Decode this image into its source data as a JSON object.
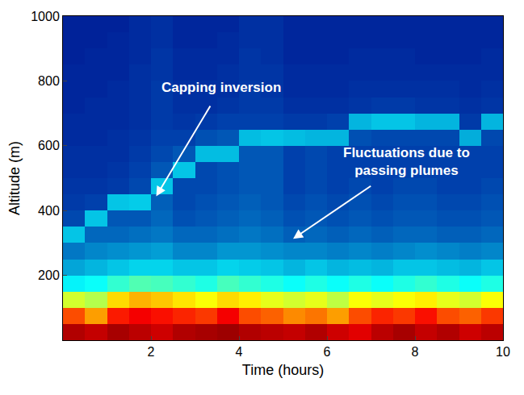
{
  "chart_data": {
    "type": "heatmap",
    "x_label": "Time (hours)",
    "y_label": "Altitude (m)",
    "x": [
      0.25,
      0.75,
      1.25,
      1.75,
      2.25,
      2.75,
      3.25,
      3.75,
      4.25,
      4.75,
      5.25,
      5.75,
      6.25,
      6.75,
      7.25,
      7.75,
      8.25,
      8.75,
      9.25,
      9.75
    ],
    "y": [
      25,
      75,
      125,
      175,
      225,
      275,
      325,
      375,
      425,
      475,
      525,
      575,
      625,
      675,
      725,
      775,
      825,
      875,
      925,
      975
    ],
    "cells": [
      [
        0.95,
        0.93,
        0.96,
        0.94,
        0.92,
        0.95,
        0.96,
        0.97,
        0.95,
        0.94,
        0.93,
        0.95,
        0.92,
        0.9,
        0.94,
        0.96,
        0.93,
        0.95,
        0.92,
        0.94
      ],
      [
        0.8,
        0.72,
        0.85,
        0.88,
        0.86,
        0.84,
        0.82,
        0.88,
        0.8,
        0.78,
        0.74,
        0.76,
        0.72,
        0.8,
        0.84,
        0.82,
        0.86,
        0.8,
        0.78,
        0.82
      ],
      [
        0.58,
        0.55,
        0.66,
        0.7,
        0.68,
        0.65,
        0.62,
        0.66,
        0.64,
        0.6,
        0.58,
        0.6,
        0.56,
        0.62,
        0.6,
        0.62,
        0.64,
        0.6,
        0.58,
        0.62
      ],
      [
        0.36,
        0.38,
        0.42,
        0.45,
        0.44,
        0.42,
        0.4,
        0.44,
        0.42,
        0.4,
        0.38,
        0.4,
        0.38,
        0.4,
        0.38,
        0.4,
        0.42,
        0.4,
        0.38,
        0.4
      ],
      [
        0.26,
        0.28,
        0.3,
        0.32,
        0.32,
        0.3,
        0.3,
        0.32,
        0.31,
        0.3,
        0.28,
        0.3,
        0.28,
        0.29,
        0.28,
        0.3,
        0.3,
        0.29,
        0.28,
        0.3
      ],
      [
        0.2,
        0.22,
        0.23,
        0.24,
        0.25,
        0.22,
        0.22,
        0.24,
        0.24,
        0.23,
        0.22,
        0.22,
        0.21,
        0.22,
        0.21,
        0.22,
        0.23,
        0.22,
        0.21,
        0.22
      ],
      [
        0.3,
        0.18,
        0.18,
        0.19,
        0.2,
        0.18,
        0.18,
        0.19,
        0.2,
        0.19,
        0.17,
        0.18,
        0.17,
        0.18,
        0.17,
        0.18,
        0.18,
        0.17,
        0.17,
        0.18
      ],
      [
        0.14,
        0.3,
        0.16,
        0.16,
        0.18,
        0.15,
        0.16,
        0.17,
        0.18,
        0.17,
        0.15,
        0.16,
        0.15,
        0.16,
        0.15,
        0.16,
        0.16,
        0.15,
        0.15,
        0.16
      ],
      [
        0.12,
        0.13,
        0.3,
        0.31,
        0.17,
        0.14,
        0.15,
        0.16,
        0.17,
        0.16,
        0.14,
        0.15,
        0.14,
        0.15,
        0.14,
        0.15,
        0.15,
        0.14,
        0.14,
        0.15
      ],
      [
        0.11,
        0.11,
        0.12,
        0.14,
        0.3,
        0.14,
        0.14,
        0.15,
        0.16,
        0.16,
        0.13,
        0.14,
        0.13,
        0.14,
        0.13,
        0.14,
        0.14,
        0.13,
        0.13,
        0.14
      ],
      [
        0.1,
        0.1,
        0.11,
        0.13,
        0.16,
        0.3,
        0.14,
        0.15,
        0.16,
        0.16,
        0.13,
        0.14,
        0.13,
        0.13,
        0.13,
        0.13,
        0.13,
        0.13,
        0.13,
        0.13
      ],
      [
        0.1,
        0.1,
        0.1,
        0.12,
        0.14,
        0.16,
        0.29,
        0.29,
        0.16,
        0.16,
        0.13,
        0.14,
        0.13,
        0.13,
        0.13,
        0.13,
        0.13,
        0.13,
        0.13,
        0.13
      ],
      [
        0.09,
        0.09,
        0.1,
        0.11,
        0.13,
        0.13,
        0.15,
        0.16,
        0.29,
        0.3,
        0.29,
        0.28,
        0.28,
        0.15,
        0.14,
        0.14,
        0.14,
        0.14,
        0.27,
        0.14
      ],
      [
        0.09,
        0.09,
        0.09,
        0.1,
        0.12,
        0.11,
        0.12,
        0.13,
        0.13,
        0.13,
        0.12,
        0.12,
        0.13,
        0.28,
        0.3,
        0.3,
        0.28,
        0.28,
        0.12,
        0.28
      ],
      [
        0.08,
        0.09,
        0.09,
        0.1,
        0.12,
        0.1,
        0.1,
        0.11,
        0.12,
        0.12,
        0.1,
        0.1,
        0.1,
        0.11,
        0.12,
        0.12,
        0.11,
        0.11,
        0.1,
        0.11
      ],
      [
        0.08,
        0.08,
        0.09,
        0.1,
        0.12,
        0.1,
        0.1,
        0.1,
        0.12,
        0.11,
        0.09,
        0.09,
        0.09,
        0.1,
        0.1,
        0.1,
        0.1,
        0.1,
        0.09,
        0.1
      ],
      [
        0.08,
        0.08,
        0.08,
        0.1,
        0.11,
        0.09,
        0.09,
        0.1,
        0.11,
        0.11,
        0.09,
        0.09,
        0.09,
        0.09,
        0.09,
        0.09,
        0.09,
        0.09,
        0.09,
        0.09
      ],
      [
        0.07,
        0.08,
        0.08,
        0.09,
        0.11,
        0.09,
        0.09,
        0.09,
        0.11,
        0.1,
        0.08,
        0.08,
        0.08,
        0.09,
        0.09,
        0.09,
        0.08,
        0.08,
        0.08,
        0.09
      ],
      [
        0.07,
        0.07,
        0.08,
        0.09,
        0.1,
        0.08,
        0.08,
        0.09,
        0.1,
        0.1,
        0.08,
        0.08,
        0.08,
        0.08,
        0.08,
        0.08,
        0.08,
        0.08,
        0.08,
        0.08
      ],
      [
        0.07,
        0.07,
        0.07,
        0.09,
        0.1,
        0.08,
        0.08,
        0.08,
        0.1,
        0.1,
        0.08,
        0.08,
        0.08,
        0.08,
        0.08,
        0.08,
        0.08,
        0.08,
        0.08,
        0.08
      ]
    ],
    "zlim": [
      0,
      1
    ],
    "xlim": [
      0,
      10
    ],
    "ylim": [
      0,
      1000
    ],
    "xticks": [
      2,
      4,
      6,
      8,
      10
    ],
    "yticks": [
      200,
      400,
      600,
      800,
      1000
    ],
    "annotations": [
      {
        "text": [
          "Capping inversion"
        ],
        "x": 2.1,
        "y": 440,
        "text_x": 3.6,
        "text_y": 780
      },
      {
        "text": [
          "Fluctuations due to",
          "passing plumes"
        ],
        "x": 5.2,
        "y": 310,
        "text_x": 7.8,
        "text_y": 550
      }
    ]
  }
}
